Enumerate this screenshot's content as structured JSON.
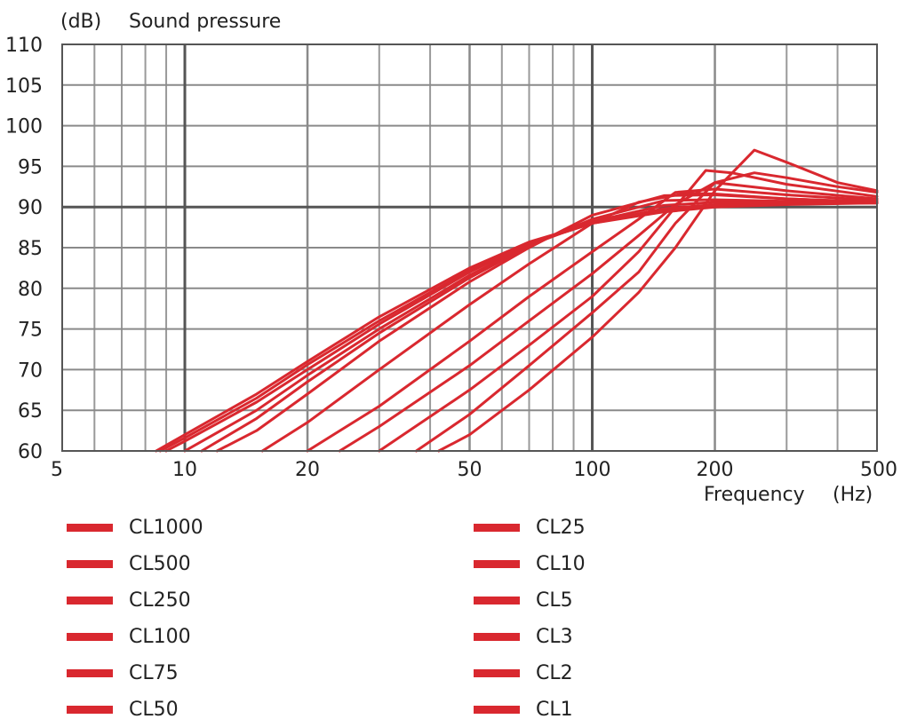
{
  "chart_data": {
    "type": "line",
    "ylabel_unit": "(dB)",
    "ylabel": "Sound pressure",
    "xlabel": "Frequency",
    "xlabel_unit": "(Hz)",
    "x_scale": "log",
    "xlim": [
      5,
      500
    ],
    "ylim": [
      60,
      110
    ],
    "x_ticks": [
      5,
      10,
      20,
      50,
      100,
      200,
      500
    ],
    "x_tick_labels": [
      "5",
      "10",
      "20",
      "50",
      "100",
      "200",
      "500"
    ],
    "y_ticks": [
      60,
      65,
      70,
      75,
      80,
      85,
      90,
      95,
      100,
      105,
      110
    ],
    "y_tick_labels": [
      "60",
      "65",
      "70",
      "75",
      "80",
      "85",
      "90",
      "95",
      "100",
      "105",
      "110"
    ],
    "grid": true,
    "line_color": "#d9282f",
    "series": [
      {
        "name": "CL1000",
        "points": [
          [
            8.5,
            60
          ],
          [
            10,
            62
          ],
          [
            15,
            67
          ],
          [
            20,
            71
          ],
          [
            30,
            76.5
          ],
          [
            50,
            82.5
          ],
          [
            70,
            85.7
          ],
          [
            100,
            88
          ],
          [
            150,
            89.4
          ],
          [
            200,
            90
          ],
          [
            300,
            90.3
          ],
          [
            500,
            90.5
          ]
        ]
      },
      {
        "name": "CL500",
        "points": [
          [
            8.7,
            60
          ],
          [
            10,
            61.6
          ],
          [
            15,
            66.5
          ],
          [
            20,
            70.6
          ],
          [
            30,
            76
          ],
          [
            50,
            82.2
          ],
          [
            70,
            85.5
          ],
          [
            100,
            88
          ],
          [
            150,
            89.6
          ],
          [
            200,
            90.1
          ],
          [
            300,
            90.4
          ],
          [
            500,
            90.5
          ]
        ]
      },
      {
        "name": "CL250",
        "points": [
          [
            9,
            60
          ],
          [
            10,
            61.2
          ],
          [
            15,
            66
          ],
          [
            20,
            70
          ],
          [
            30,
            75.6
          ],
          [
            50,
            82
          ],
          [
            70,
            85.5
          ],
          [
            100,
            88
          ],
          [
            150,
            89.8
          ],
          [
            200,
            90.3
          ],
          [
            300,
            90.5
          ],
          [
            500,
            90.5
          ]
        ]
      },
      {
        "name": "CL100",
        "points": [
          [
            10,
            60
          ],
          [
            15,
            65
          ],
          [
            20,
            69.3
          ],
          [
            30,
            75
          ],
          [
            50,
            81.6
          ],
          [
            70,
            85.3
          ],
          [
            100,
            88.2
          ],
          [
            150,
            90.2
          ],
          [
            200,
            90.6
          ],
          [
            300,
            90.6
          ],
          [
            500,
            90.5
          ]
        ]
      },
      {
        "name": "CL75",
        "points": [
          [
            11,
            60
          ],
          [
            15,
            64
          ],
          [
            20,
            68.5
          ],
          [
            30,
            74.5
          ],
          [
            50,
            81.3
          ],
          [
            70,
            85.2
          ],
          [
            100,
            88.5
          ],
          [
            150,
            90.8
          ],
          [
            200,
            90.9
          ],
          [
            300,
            90.7
          ],
          [
            500,
            90.5
          ]
        ]
      },
      {
        "name": "CL50",
        "points": [
          [
            12,
            60
          ],
          [
            15,
            62.5
          ],
          [
            20,
            67
          ],
          [
            30,
            73.5
          ],
          [
            50,
            80.8
          ],
          [
            70,
            85
          ],
          [
            100,
            89
          ],
          [
            150,
            91.4
          ],
          [
            200,
            91.5
          ],
          [
            300,
            91
          ],
          [
            500,
            90.6
          ]
        ]
      },
      {
        "name": "CL25",
        "points": [
          [
            15.5,
            60
          ],
          [
            20,
            63.5
          ],
          [
            30,
            70
          ],
          [
            50,
            78
          ],
          [
            70,
            83
          ],
          [
            100,
            88
          ],
          [
            130,
            90.6
          ],
          [
            170,
            91.7
          ],
          [
            200,
            91.6
          ],
          [
            300,
            91
          ],
          [
            500,
            90.6
          ]
        ]
      },
      {
        "name": "CL10",
        "points": [
          [
            20,
            60
          ],
          [
            30,
            65.5
          ],
          [
            50,
            73.5
          ],
          [
            70,
            79
          ],
          [
            100,
            84.5
          ],
          [
            130,
            88.5
          ],
          [
            160,
            91.8
          ],
          [
            200,
            92.2
          ],
          [
            300,
            91.5
          ],
          [
            500,
            90.8
          ]
        ]
      },
      {
        "name": "CL5",
        "points": [
          [
            24,
            60
          ],
          [
            30,
            63
          ],
          [
            50,
            70.5
          ],
          [
            70,
            76
          ],
          [
            100,
            81.8
          ],
          [
            130,
            86.5
          ],
          [
            160,
            90.3
          ],
          [
            200,
            93
          ],
          [
            300,
            92
          ],
          [
            500,
            91
          ]
        ]
      },
      {
        "name": "CL3",
        "points": [
          [
            30,
            60
          ],
          [
            50,
            67.5
          ],
          [
            70,
            73
          ],
          [
            100,
            79
          ],
          [
            130,
            84.5
          ],
          [
            160,
            90
          ],
          [
            190,
            94.5
          ],
          [
            220,
            94.2
          ],
          [
            300,
            92.8
          ],
          [
            500,
            91.3
          ]
        ]
      },
      {
        "name": "CL2",
        "points": [
          [
            37,
            60
          ],
          [
            50,
            64.5
          ],
          [
            70,
            70.5
          ],
          [
            100,
            77
          ],
          [
            130,
            82
          ],
          [
            160,
            88
          ],
          [
            200,
            93
          ],
          [
            250,
            94.2
          ],
          [
            300,
            93.6
          ],
          [
            400,
            92.5
          ],
          [
            500,
            91.8
          ]
        ]
      },
      {
        "name": "CL1",
        "points": [
          [
            42,
            60
          ],
          [
            50,
            62
          ],
          [
            70,
            67.5
          ],
          [
            100,
            74
          ],
          [
            130,
            79.5
          ],
          [
            160,
            85
          ],
          [
            200,
            92
          ],
          [
            250,
            97
          ],
          [
            300,
            95.5
          ],
          [
            400,
            93
          ],
          [
            500,
            92
          ]
        ]
      }
    ]
  },
  "legend": {
    "items": [
      "CL1000",
      "CL500",
      "CL250",
      "CL100",
      "CL75",
      "CL50",
      "CL25",
      "CL10",
      "CL5",
      "CL3",
      "CL2",
      "CL1"
    ]
  }
}
